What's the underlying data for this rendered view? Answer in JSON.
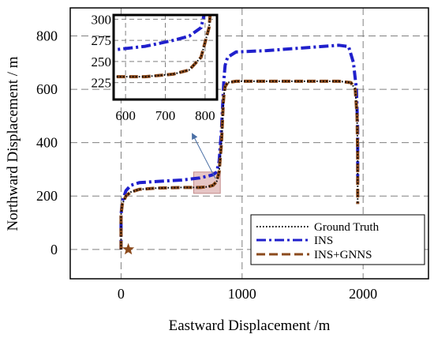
{
  "chart_data": {
    "type": "line",
    "xlabel": "Eastward Displacement /m",
    "ylabel": "Northward Displacement / m",
    "xlim": [
      -420,
      2540
    ],
    "ylim": [
      -110,
      905
    ],
    "xticks": [
      0,
      1000,
      2000
    ],
    "yticks": [
      0,
      200,
      400,
      600,
      800
    ],
    "grid": true,
    "legend_position": "bottom-right",
    "start_marker": {
      "x": 60,
      "y": 0,
      "shape": "star",
      "color": "#8b4a1c"
    },
    "highlight_box": {
      "x": [
        600,
        820
      ],
      "y": [
        210,
        290
      ],
      "color": "#d9a6a6"
    },
    "series": [
      {
        "name": "Ground Truth",
        "style": "dotted",
        "color": "#000000",
        "x": [
          0,
          0,
          10,
          40,
          80,
          150,
          300,
          500,
          650,
          720,
          760,
          790,
          810,
          830,
          845,
          850,
          860,
          880,
          950,
          1200,
          1500,
          1800,
          1900,
          1935,
          1950,
          1955,
          1955
        ],
        "y": [
          0,
          130,
          170,
          200,
          215,
          225,
          230,
          232,
          232,
          235,
          240,
          255,
          290,
          400,
          550,
          580,
          610,
          625,
          630,
          630,
          630,
          630,
          625,
          600,
          500,
          350,
          170
        ]
      },
      {
        "name": "INS",
        "style": "dashdot",
        "color": "#2020cc",
        "x": [
          0,
          0,
          10,
          40,
          80,
          150,
          300,
          500,
          650,
          720,
          760,
          790,
          810,
          830,
          845,
          850,
          860,
          880,
          950,
          1200,
          1500,
          1800,
          1880,
          1920,
          1945,
          1955,
          1955
        ],
        "y": [
          0,
          130,
          180,
          220,
          240,
          250,
          255,
          260,
          268,
          275,
          280,
          290,
          330,
          450,
          590,
          640,
          690,
          720,
          740,
          745,
          755,
          765,
          760,
          700,
          600,
          450,
          250
        ]
      },
      {
        "name": "INS+GNNS",
        "style": "dashed",
        "color": "#8b4a1c",
        "x": [
          0,
          0,
          10,
          40,
          80,
          150,
          300,
          500,
          650,
          720,
          760,
          790,
          810,
          830,
          845,
          850,
          860,
          880,
          950,
          1200,
          1500,
          1800,
          1900,
          1935,
          1950,
          1955,
          1955
        ],
        "y": [
          0,
          130,
          170,
          200,
          215,
          225,
          230,
          232,
          232,
          235,
          240,
          255,
          290,
          400,
          550,
          580,
          610,
          625,
          630,
          630,
          630,
          630,
          625,
          600,
          500,
          350,
          170
        ]
      }
    ],
    "inset": {
      "xlim": [
        570,
        830
      ],
      "ylim": [
        205,
        305
      ],
      "xticks": [
        600,
        700,
        800
      ],
      "yticks": [
        225,
        250,
        275,
        300
      ],
      "grid": true
    }
  }
}
